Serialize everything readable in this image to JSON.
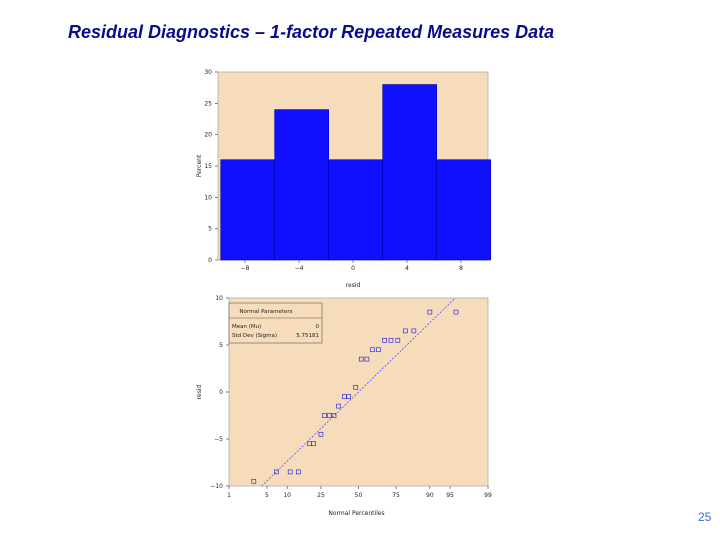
{
  "slide": {
    "title": "Residual Diagnostics – 1-factor Repeated Measures Data",
    "page_number": "25"
  },
  "colors": {
    "panel_bg": "#f7dcbb",
    "bar_fill": "#1010ff",
    "bar_stroke": "#0000a0",
    "marker": "#3030e0",
    "ref_line": "#4040ff"
  },
  "chart_data": [
    {
      "type": "bar",
      "ylabel": "Percent",
      "xlabel": "resid",
      "x_ticks": [
        -8,
        -4,
        0,
        4,
        8
      ],
      "x_tick_labels": [
        "−8",
        "−4",
        "0",
        "4",
        "8"
      ],
      "y_ticks": [
        0,
        5,
        10,
        15,
        20,
        25,
        30
      ],
      "ylim": [
        0,
        30
      ],
      "xlim": [
        -10,
        10
      ],
      "bin_edges": [
        -10,
        -6,
        -2,
        2,
        6,
        10
      ],
      "values": [
        16,
        24,
        16,
        28,
        16
      ]
    },
    {
      "type": "scatter",
      "ylabel": "resid",
      "xlabel": "Normal Percentiles",
      "x_ticks": [
        1,
        5,
        10,
        25,
        50,
        75,
        90,
        95,
        99
      ],
      "y_ticks": [
        -10,
        -5,
        0,
        5,
        10
      ],
      "ylim": [
        -10,
        10
      ],
      "legend": {
        "title": "Normal Parameters",
        "rows": [
          {
            "label": "Mean (Mu)",
            "value": "0"
          },
          {
            "label": "Std Dev (Sigma)",
            "value": "5.75181"
          }
        ]
      },
      "points": [
        {
          "p": 3,
          "y": -9.5
        },
        {
          "p": 7,
          "y": -8.5
        },
        {
          "p": 11,
          "y": -8.5
        },
        {
          "p": 14,
          "y": -8.5
        },
        {
          "p": 19,
          "y": -5.5
        },
        {
          "p": 21,
          "y": -5.5
        },
        {
          "p": 25,
          "y": -4.5
        },
        {
          "p": 27,
          "y": -2.5
        },
        {
          "p": 30,
          "y": -2.5
        },
        {
          "p": 33,
          "y": -2.5
        },
        {
          "p": 36,
          "y": -1.5
        },
        {
          "p": 40,
          "y": -0.5
        },
        {
          "p": 43,
          "y": -0.5
        },
        {
          "p": 48,
          "y": 0.5
        },
        {
          "p": 52,
          "y": 3.5
        },
        {
          "p": 56,
          "y": 3.5
        },
        {
          "p": 60,
          "y": 4.5
        },
        {
          "p": 64,
          "y": 4.5
        },
        {
          "p": 68,
          "y": 5.5
        },
        {
          "p": 72,
          "y": 5.5
        },
        {
          "p": 76,
          "y": 5.5
        },
        {
          "p": 80,
          "y": 6.5
        },
        {
          "p": 84,
          "y": 6.5
        },
        {
          "p": 90,
          "y": 8.5
        },
        {
          "p": 96,
          "y": 8.5
        }
      ],
      "reference_line": {
        "mu": 0,
        "sigma": 5.75181
      }
    }
  ]
}
